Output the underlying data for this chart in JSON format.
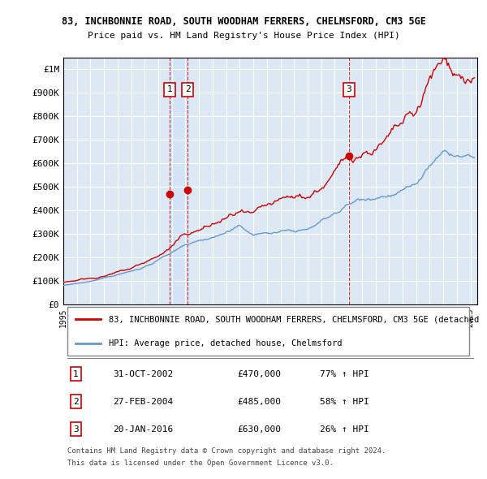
{
  "title1": "83, INCHBONNIE ROAD, SOUTH WOODHAM FERRERS, CHELMSFORD, CM3 5GE",
  "title2": "Price paid vs. HM Land Registry's House Price Index (HPI)",
  "xlabel": "",
  "ylabel": "",
  "ylim": [
    0,
    1050000
  ],
  "xlim_start": 1995.0,
  "xlim_end": 2025.5,
  "background_color": "#dce9f5",
  "plot_bg_color": "#dce9f5",
  "grid_color": "#ffffff",
  "red_line_color": "#cc0000",
  "blue_line_color": "#6699cc",
  "sale_dot_color": "#cc0000",
  "vline_color": "#cc0000",
  "vline_style": "dashed",
  "vline_alpha": 0.7,
  "sale_events": [
    {
      "label": "1",
      "date_year": 2002.83,
      "price": 470000,
      "pct": "77%",
      "date_str": "31-OCT-2002"
    },
    {
      "label": "2",
      "date_year": 2004.15,
      "price": 485000,
      "pct": "58%",
      "date_str": "27-FEB-2004"
    },
    {
      "label": "3",
      "date_year": 2016.05,
      "price": 630000,
      "pct": "26%",
      "date_str": "20-JAN-2016"
    }
  ],
  "legend_line1": "83, INCHBONNIE ROAD, SOUTH WOODHAM FERRERS, CHELMSFORD, CM3 5GE (detached",
  "legend_line2": "HPI: Average price, detached house, Chelmsford",
  "footer1": "Contains HM Land Registry data © Crown copyright and database right 2024.",
  "footer2": "This data is licensed under the Open Government Licence v3.0.",
  "yticks": [
    0,
    100000,
    200000,
    300000,
    400000,
    500000,
    600000,
    700000,
    800000,
    900000,
    1000000
  ],
  "ytick_labels": [
    "£0",
    "£100K",
    "£200K",
    "£300K",
    "£400K",
    "£500K",
    "£600K",
    "£700K",
    "£800K",
    "£900K",
    "£1M"
  ]
}
